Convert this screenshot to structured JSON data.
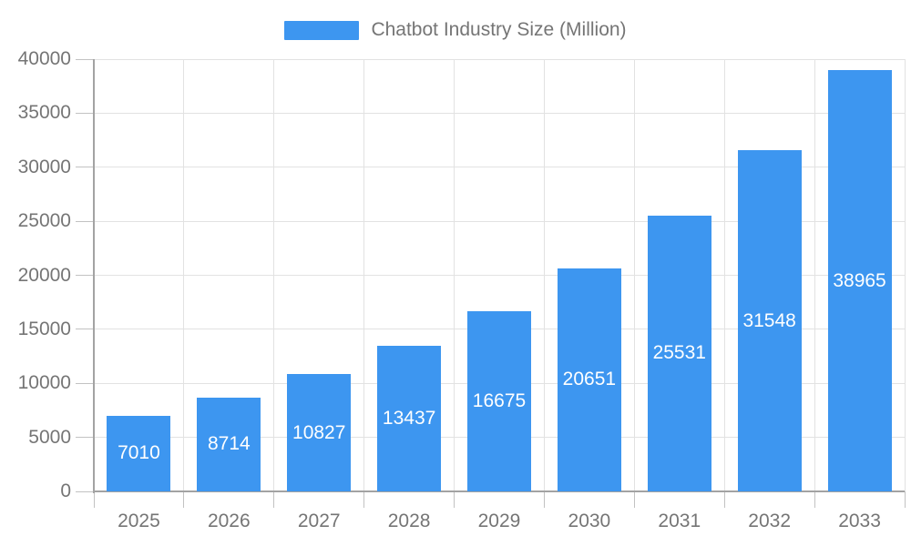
{
  "chart_data": {
    "type": "bar",
    "title": "Chatbot Industry Size (Million)",
    "legend": {
      "entries": [
        "Chatbot Industry Size (Million)"
      ],
      "position": "top-center"
    },
    "categories": [
      "2025",
      "2026",
      "2027",
      "2028",
      "2029",
      "2030",
      "2031",
      "2032",
      "2033"
    ],
    "series": [
      {
        "name": "Chatbot Industry Size (Million)",
        "values": [
          7010,
          8714,
          10827,
          13437,
          16675,
          20651,
          25531,
          31548,
          38965
        ]
      }
    ],
    "xlabel": "",
    "ylabel": "",
    "ylim": [
      0,
      40000
    ],
    "y_tick_step": 5000,
    "y_tick_labels": [
      "0",
      "5000",
      "10000",
      "15000",
      "20000",
      "25000",
      "30000",
      "35000",
      "40000"
    ],
    "grid": true,
    "value_labels": "inside-center",
    "colors": {
      "bar": "#3D96F0",
      "axis_text": "#757575",
      "grid_line": "#E2E2E2",
      "tick_line": "#C2C2C2",
      "axis_line": "#A3A3A3",
      "value_label": "#FFFFFF",
      "background": "#FFFFFF"
    }
  }
}
